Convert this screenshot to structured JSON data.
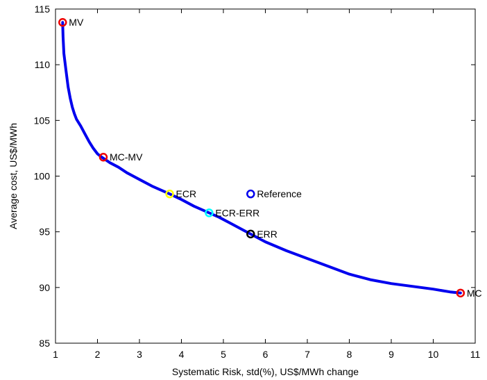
{
  "chart_data": {
    "type": "line",
    "title": "",
    "xlabel": "Systematic Risk, std(%), US$/MWh change",
    "ylabel": "Average cost, US$/MWh",
    "xlim": [
      1,
      11
    ],
    "ylim": [
      85,
      115
    ],
    "xticks": [
      1,
      2,
      3,
      4,
      5,
      6,
      7,
      8,
      9,
      10,
      11
    ],
    "yticks": [
      85,
      90,
      95,
      100,
      105,
      110,
      115
    ],
    "grid": false,
    "colors": {
      "frontier": "#0000ee",
      "red": "#ee0000",
      "yellow": "#ffff00",
      "cyan": "#00ffff",
      "black": "#000000",
      "blue": "#0000ee"
    },
    "series": [
      {
        "x": [
          1.17,
          1.18,
          1.2,
          1.25,
          1.3,
          1.35,
          1.4,
          1.45,
          1.5,
          1.6,
          1.7,
          1.8,
          1.9,
          2.0,
          2.1,
          2.3,
          2.5,
          2.7,
          3.0,
          3.3,
          3.6,
          3.72,
          4.0,
          4.3,
          4.6,
          4.9,
          5.2,
          5.5,
          5.65,
          6.0,
          6.5,
          7.0,
          7.5,
          8.0,
          8.5,
          9.0,
          9.5,
          10.0,
          10.4,
          10.65
        ],
        "y": [
          113.8,
          112.5,
          111.0,
          109.5,
          108.0,
          107.0,
          106.2,
          105.6,
          105.1,
          104.5,
          103.8,
          103.1,
          102.5,
          102.0,
          101.7,
          101.2,
          100.8,
          100.3,
          99.7,
          99.1,
          98.6,
          98.4,
          97.9,
          97.3,
          96.8,
          96.3,
          95.7,
          95.1,
          94.8,
          94.1,
          93.3,
          92.6,
          91.9,
          91.2,
          90.7,
          90.35,
          90.1,
          89.85,
          89.6,
          89.5
        ]
      }
    ],
    "points": [
      {
        "label": "MV",
        "x": 1.17,
        "y": 113.8,
        "color": "#ee0000"
      },
      {
        "label": "MC-MV",
        "x": 2.14,
        "y": 101.7,
        "color": "#ee0000"
      },
      {
        "label": "ECR",
        "x": 3.72,
        "y": 98.4,
        "color": "#ffff00"
      },
      {
        "label": "Reference",
        "x": 5.65,
        "y": 98.4,
        "color": "#0000ee"
      },
      {
        "label": "ECR-ERR",
        "x": 4.66,
        "y": 96.7,
        "color": "#00ffff"
      },
      {
        "label": "ERR",
        "x": 5.65,
        "y": 94.8,
        "color": "#000000"
      },
      {
        "label": "MC",
        "x": 10.65,
        "y": 89.5,
        "color": "#ee0000"
      }
    ]
  }
}
